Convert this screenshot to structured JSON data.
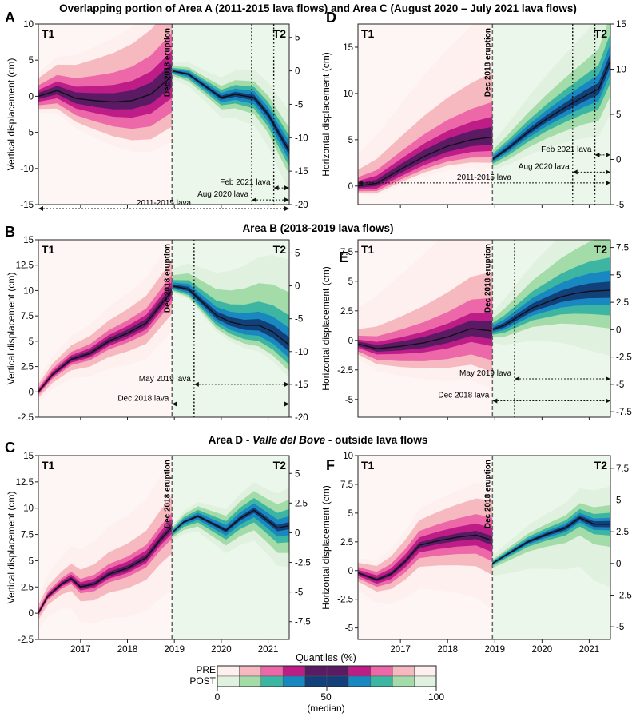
{
  "row_titles": [
    "Overlapping portion of Area A (2011-2015 lava flows) and Area C (August 2020 – July 2021 lava flows)",
    "Area B (2018-2019 lava flows)",
    "Area D - Valle del Bove - outside lava flows"
  ],
  "row3_title_parts": [
    "Area D - ",
    "Valle del Bove",
    " - outside lava flows"
  ],
  "eruption_label": "Dec 2018 eruption",
  "period_labels": [
    "T1",
    "T2"
  ],
  "colors": {
    "pre": [
      "#fdf0ee",
      "#f7b9c0",
      "#ec68a8",
      "#be1c86",
      "#5a1a64"
    ],
    "post": [
      "#e0f2df",
      "#a3dba9",
      "#3cb6a2",
      "#1a88c0",
      "#12407a"
    ],
    "median": "#111111"
  },
  "chart_data": [
    {
      "panel": "A",
      "type": "area",
      "ylabel": "Vertical displacement (cm)",
      "ylim": [
        -15,
        10
      ],
      "yticks": [
        -15,
        -10,
        -5,
        0,
        5,
        10
      ],
      "right_ylim": [
        -20,
        7
      ],
      "right_yticks": [
        -20,
        -15,
        -10,
        -5,
        0,
        5
      ],
      "xlim": [
        2016.1,
        2021.45
      ],
      "xticks": [
        2017,
        2018,
        2019,
        2020,
        2021
      ],
      "show_xlabels": false,
      "eruption_x": 2018.95,
      "lava_lines_x": [
        2020.65,
        2021.12
      ],
      "annotations": [
        {
          "label": "Feb 2021 lava",
          "from": 2021.12,
          "to": 2021.45,
          "y_value": -17.5
        },
        {
          "label": "Aug 2020 lava",
          "from": 2020.65,
          "to": 2021.45,
          "y_value": -19.3
        },
        {
          "label": "2011-2015 lava",
          "from": 2016.1,
          "to": 2021.45,
          "y_value": -20.6
        }
      ],
      "pre": {
        "x": [
          2016.1,
          2016.5,
          2016.9,
          2017.3,
          2017.7,
          2018.1,
          2018.5,
          2018.95
        ],
        "median": [
          0,
          0.8,
          -0.3,
          -0.6,
          -0.8,
          -0.6,
          0.3,
          2.8
        ],
        "bands": [
          [
            13,
            9
          ],
          [
            10,
            7
          ],
          [
            6,
            5
          ],
          [
            3.5,
            3
          ],
          [
            1.8,
            1.5
          ]
        ]
      },
      "post": {
        "x": [
          2018.95,
          2019.3,
          2019.7,
          2020.0,
          2020.3,
          2020.7,
          2021.0,
          2021.2,
          2021.45
        ],
        "median": [
          0,
          -0.5,
          -2.5,
          -4,
          -3.5,
          -4,
          -6.5,
          -9,
          -12
        ],
        "bands": [
          [
            6,
            6
          ],
          [
            3.5,
            3.5
          ],
          [
            2.3,
            2.3
          ],
          [
            1.4,
            1.4
          ],
          [
            0.6,
            0.6
          ]
        ]
      }
    },
    {
      "panel": "D",
      "type": "area",
      "ylabel": "Horizontal displacement (cm)",
      "ylim": [
        -2,
        17.5
      ],
      "yticks": [
        0,
        5,
        10,
        15
      ],
      "right_ylim": [
        -5,
        15
      ],
      "right_yticks": [
        -5,
        0,
        5,
        10,
        15
      ],
      "xlim": [
        2016.1,
        2021.45
      ],
      "xticks": [
        2017,
        2018,
        2019,
        2020,
        2021
      ],
      "show_xlabels": false,
      "eruption_x": 2018.95,
      "lava_lines_x": [
        2020.65,
        2021.12
      ],
      "annotations": [
        {
          "label": "Feb 2021 lava",
          "from": 2021.12,
          "to": 2021.45,
          "y_value": 0.5
        },
        {
          "label": "Aug 2020 lava",
          "from": 2020.65,
          "to": 2021.45,
          "y_value": -1.4
        },
        {
          "label": "2011-2015 lava",
          "from": 2016.1,
          "to": 2021.45,
          "y_value": -2.6
        }
      ],
      "pre": {
        "x": [
          2016.1,
          2016.5,
          2017.0,
          2017.5,
          2018.0,
          2018.5,
          2018.95
        ],
        "median": [
          0,
          0.3,
          1.8,
          3.2,
          4.3,
          5,
          5.3
        ],
        "bands": [
          [
            14,
            3.5
          ],
          [
            7,
            2.8
          ],
          [
            3.8,
            2.2
          ],
          [
            2.2,
            1.5
          ],
          [
            1.1,
            0.8
          ]
        ]
      },
      "post": {
        "x": [
          2018.95,
          2019.3,
          2019.7,
          2020.1,
          2020.5,
          2020.9,
          2021.2,
          2021.45
        ],
        "median": [
          0,
          1.3,
          3,
          4.5,
          5.8,
          7,
          7.8,
          11
        ],
        "bands": [
          [
            9,
            6
          ],
          [
            5,
            4
          ],
          [
            3,
            2.5
          ],
          [
            1.8,
            1.5
          ],
          [
            0.8,
            0.7
          ]
        ]
      }
    },
    {
      "panel": "B",
      "type": "area",
      "ylabel": "Vertical displacement (cm)",
      "ylim": [
        -2.5,
        15
      ],
      "yticks": [
        -2.5,
        0,
        2.5,
        5,
        7.5,
        10,
        12.5,
        15
      ],
      "right_ylim": [
        -20,
        7
      ],
      "right_yticks": [
        -20,
        -15,
        -10,
        -5,
        0,
        5
      ],
      "xlim": [
        2016.1,
        2021.45
      ],
      "xticks": [
        2017,
        2018,
        2019,
        2020,
        2021
      ],
      "show_xlabels": false,
      "eruption_x": 2018.95,
      "lava_lines_x": [
        2019.42
      ],
      "annotations": [
        {
          "label": "May 2019 lava",
          "from": 2019.42,
          "to": 2021.45,
          "y_value": -15
        },
        {
          "label": "Dec 2018 lava",
          "from": 2018.95,
          "to": 2021.45,
          "y_value": -18
        }
      ],
      "pre": {
        "x": [
          2016.1,
          2016.4,
          2016.8,
          2017.2,
          2017.6,
          2018.0,
          2018.4,
          2018.95
        ],
        "median": [
          0,
          1.7,
          3.2,
          3.8,
          5.0,
          5.8,
          6.8,
          10
        ],
        "bands": [
          [
            5,
            4
          ],
          [
            3,
            2.3
          ],
          [
            1.6,
            1.2
          ],
          [
            0.9,
            0.7
          ],
          [
            0.45,
            0.35
          ]
        ]
      },
      "post": {
        "x": [
          2018.95,
          2019.3,
          2019.6,
          2019.9,
          2020.2,
          2020.5,
          2020.8,
          2021.1,
          2021.45
        ],
        "median": [
          0,
          -0.5,
          -2.5,
          -4.5,
          -5.5,
          -6,
          -6,
          -7,
          -9
        ],
        "bands": [
          [
            13,
            5
          ],
          [
            8,
            4
          ],
          [
            4.5,
            3
          ],
          [
            2.6,
            2
          ],
          [
            1.2,
            1
          ]
        ]
      }
    },
    {
      "panel": "E",
      "type": "area",
      "ylabel": "Horizontal displacement (cm)",
      "ylim": [
        -6.5,
        8.5
      ],
      "yticks": [
        -5,
        -2.5,
        0,
        2.5,
        5,
        7.5
      ],
      "right_ylim": [
        -8,
        8.2
      ],
      "right_yticks": [
        -7.5,
        -5,
        -2.5,
        0,
        2.5,
        5,
        7.5
      ],
      "xlim": [
        2016.1,
        2021.45
      ],
      "xticks": [
        2017,
        2018,
        2019,
        2020,
        2021
      ],
      "show_xlabels": false,
      "eruption_x": 2018.95,
      "lava_lines_x": [
        2019.42
      ],
      "annotations": [
        {
          "label": "May 2019 lava",
          "from": 2019.42,
          "to": 2021.45,
          "y_value": -4.5
        },
        {
          "label": "Dec 2018 lava",
          "from": 2018.95,
          "to": 2021.45,
          "y_value": -6.5
        }
      ],
      "pre": {
        "x": [
          2016.1,
          2016.5,
          2017.0,
          2017.5,
          2018.0,
          2018.5,
          2018.95
        ],
        "median": [
          -0.3,
          -0.7,
          -0.5,
          -0.2,
          0.3,
          1.0,
          0.8
        ],
        "bands": [
          [
            12,
            5
          ],
          [
            5,
            3.5
          ],
          [
            2.8,
            2.5
          ],
          [
            1.5,
            1.3
          ],
          [
            0.8,
            0.7
          ]
        ]
      },
      "post": {
        "x": [
          2018.95,
          2019.2,
          2019.5,
          2019.8,
          2020.1,
          2020.4,
          2020.7,
          2021.0,
          2021.45
        ],
        "median": [
          0,
          0.4,
          1.2,
          2.0,
          2.5,
          3.0,
          3.3,
          3.5,
          3.6
        ],
        "bands": [
          [
            8,
            6
          ],
          [
            5,
            3.5
          ],
          [
            3,
            2.3
          ],
          [
            1.8,
            1.4
          ],
          [
            0.8,
            0.7
          ]
        ]
      }
    },
    {
      "panel": "C",
      "type": "area",
      "ylabel": "Vertical displacement (cm)",
      "ylim": [
        -2.5,
        15
      ],
      "yticks": [
        -2.5,
        0,
        2.5,
        5,
        7.5,
        10,
        12.5,
        15
      ],
      "right_ylim": [
        -9,
        6.5
      ],
      "right_yticks": [
        -7.5,
        -5,
        -2.5,
        0,
        2.5,
        5
      ],
      "xlim": [
        2016.1,
        2021.45
      ],
      "xticks": [
        2017,
        2018,
        2019,
        2020,
        2021
      ],
      "show_xlabels": true,
      "eruption_x": 2018.95,
      "lava_lines_x": [],
      "annotations": [],
      "pre": {
        "x": [
          2016.1,
          2016.3,
          2016.6,
          2016.8,
          2017.0,
          2017.3,
          2017.6,
          2018.0,
          2018.4,
          2018.7,
          2018.95
        ],
        "median": [
          0,
          1.6,
          2.8,
          3.3,
          2.5,
          2.8,
          3.7,
          4.3,
          5.3,
          7.0,
          8.2
        ],
        "bands": [
          [
            6.5,
            6
          ],
          [
            3,
            2.5
          ],
          [
            1.4,
            1.1
          ],
          [
            0.8,
            0.6
          ],
          [
            0.35,
            0.3
          ]
        ]
      },
      "post": {
        "x": [
          2018.95,
          2019.2,
          2019.5,
          2019.8,
          2020.1,
          2020.4,
          2020.7,
          2021.0,
          2021.2,
          2021.45
        ],
        "median": [
          0,
          0.9,
          1.4,
          0.8,
          0.2,
          1.2,
          1.9,
          1.0,
          0.4,
          0.6
        ],
        "bands": [
          [
            3.2,
            3.5
          ],
          [
            2.2,
            2.3
          ],
          [
            1.4,
            1.4
          ],
          [
            0.8,
            0.8
          ],
          [
            0.3,
            0.3
          ]
        ]
      }
    },
    {
      "panel": "F",
      "type": "area",
      "ylabel": "Horizontal displacement (cm)",
      "ylim": [
        -6,
        10
      ],
      "yticks": [
        -5,
        -2.5,
        0,
        2.5,
        5,
        7.5,
        10
      ],
      "right_ylim": [
        -6,
        8.5
      ],
      "right_yticks": [
        -5,
        -2.5,
        0,
        2.5,
        5,
        7.5
      ],
      "xlim": [
        2016.1,
        2021.45
      ],
      "xticks": [
        2017,
        2018,
        2019,
        2020,
        2021
      ],
      "show_xlabels": true,
      "eruption_x": 2018.95,
      "lava_lines_x": [],
      "annotations": [],
      "pre": {
        "x": [
          2016.1,
          2016.5,
          2016.8,
          2017.1,
          2017.4,
          2017.8,
          2018.2,
          2018.6,
          2018.95
        ],
        "median": [
          -0.2,
          -0.8,
          -0.3,
          0.8,
          2.2,
          2.6,
          2.9,
          3.1,
          2.6
        ],
        "bands": [
          [
            5,
            6
          ],
          [
            3.5,
            3
          ],
          [
            2,
            1.8
          ],
          [
            1.1,
            1
          ],
          [
            0.4,
            0.4
          ]
        ]
      },
      "post": {
        "x": [
          2018.95,
          2019.3,
          2019.7,
          2020.1,
          2020.5,
          2020.8,
          2021.1,
          2021.45
        ],
        "median": [
          0,
          0.8,
          1.7,
          2.3,
          2.8,
          3.6,
          3.1,
          3.1
        ],
        "bands": [
          [
            3,
            5
          ],
          [
            1.5,
            1.8
          ],
          [
            0.9,
            0.9
          ],
          [
            0.5,
            0.5
          ],
          [
            0.25,
            0.25
          ]
        ]
      }
    }
  ],
  "legend": {
    "title": "Quantiles (%)",
    "rows": [
      "PRE",
      "POST"
    ],
    "ticks": [
      "0",
      "50",
      "100"
    ],
    "median_note": "(median)"
  }
}
